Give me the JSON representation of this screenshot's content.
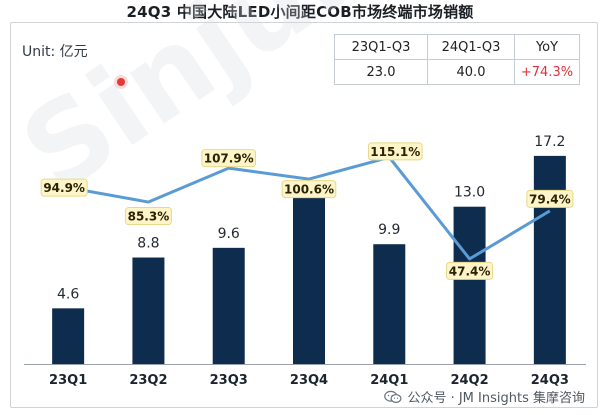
{
  "title": "24Q3 中国大陆LED小间距COB市场终端市场销额",
  "unit": "Unit: 亿元",
  "watermark": "Sinjur",
  "summary_table": {
    "headers": [
      "23Q1-Q3",
      "24Q1-Q3",
      "YoY"
    ],
    "values": [
      "23.0",
      "40.0",
      "+74.3%"
    ],
    "yoy_color": "#e0303a"
  },
  "footer": {
    "text": "公众号 · JM Insights 集摩咨询",
    "icon": "wechat-icon"
  },
  "colors": {
    "bar": "#0e2d4e",
    "line": "#5b9bd5",
    "label_bg": "#fdf5c9",
    "label_border": "#e8d98a"
  },
  "chart_data": {
    "type": "bar",
    "title": "24Q3 中国大陆LED小间距COB市场终端市场销额",
    "categories": [
      "23Q1",
      "23Q2",
      "23Q3",
      "23Q4",
      "24Q1",
      "24Q2",
      "24Q3"
    ],
    "series": [
      {
        "name": "市场销额",
        "unit": "亿元",
        "type": "bar",
        "values": [
          4.6,
          8.8,
          9.6,
          14.5,
          9.9,
          13.0,
          17.2
        ]
      },
      {
        "name": "YoY",
        "unit": "%",
        "type": "line",
        "values": [
          94.9,
          85.3,
          107.9,
          100.6,
          115.1,
          47.4,
          79.4
        ]
      }
    ],
    "bar_labels": [
      "4.6",
      "8.8",
      "9.6",
      "",
      "9.9",
      "13.0",
      "17.2"
    ],
    "line_labels": [
      "94.9%",
      "85.3%",
      "107.9%",
      "100.6%",
      "115.1%",
      "47.4%",
      "79.4%"
    ],
    "ylim": [
      0,
      20
    ],
    "line_ylim": [
      20,
      120
    ],
    "ylabel": "亿元",
    "xlabel": "",
    "grid": false,
    "legend": "none"
  }
}
